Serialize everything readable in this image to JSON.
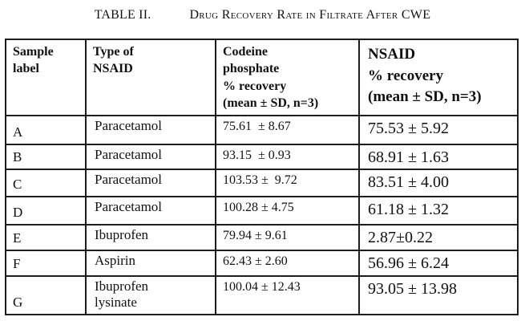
{
  "title": {
    "label": "TABLE II.",
    "caption": "Drug Recovery Rate in Filtrate After CWE"
  },
  "table": {
    "headers": [
      "Sample\nlabel",
      "Type of\nNSAID",
      "Codeine\nphosphate\n% recovery\n(mean ± SD, n=3)",
      "NSAID\n% recovery\n(mean ± SD, n=3)"
    ],
    "rows": [
      {
        "label": "A",
        "type": "Paracetamol",
        "codeine": "75.61  ± 8.67",
        "nsaid": "75.53 ± 5.92"
      },
      {
        "label": "B",
        "type": "Paracetamol",
        "codeine": "93.15  ± 0.93",
        "nsaid": "68.91 ± 1.63"
      },
      {
        "label": "C",
        "type": "Paracetamol",
        "codeine": "103.53 ±  9.72",
        "nsaid": "83.51 ± 4.00"
      },
      {
        "label": "D",
        "type": "Paracetamol",
        "codeine": "100.28 ± 4.75",
        "nsaid": "61.18 ± 1.32"
      },
      {
        "label": "E",
        "type": "Ibuprofen",
        "codeine": "79.94 ± 9.61",
        "nsaid": "2.87±0.22"
      },
      {
        "label": "F",
        "type": "Aspirin",
        "codeine": "62.43 ± 2.60",
        "nsaid": "56.96 ± 6.24"
      },
      {
        "label": "G",
        "type": "Ibuprofen\nlysinate",
        "codeine": "100.04 ± 12.43",
        "nsaid": "93.05 ± 13.98"
      }
    ]
  },
  "colors": {
    "text": "#111111",
    "border": "#1c1c1c",
    "background": "#ffffff"
  }
}
